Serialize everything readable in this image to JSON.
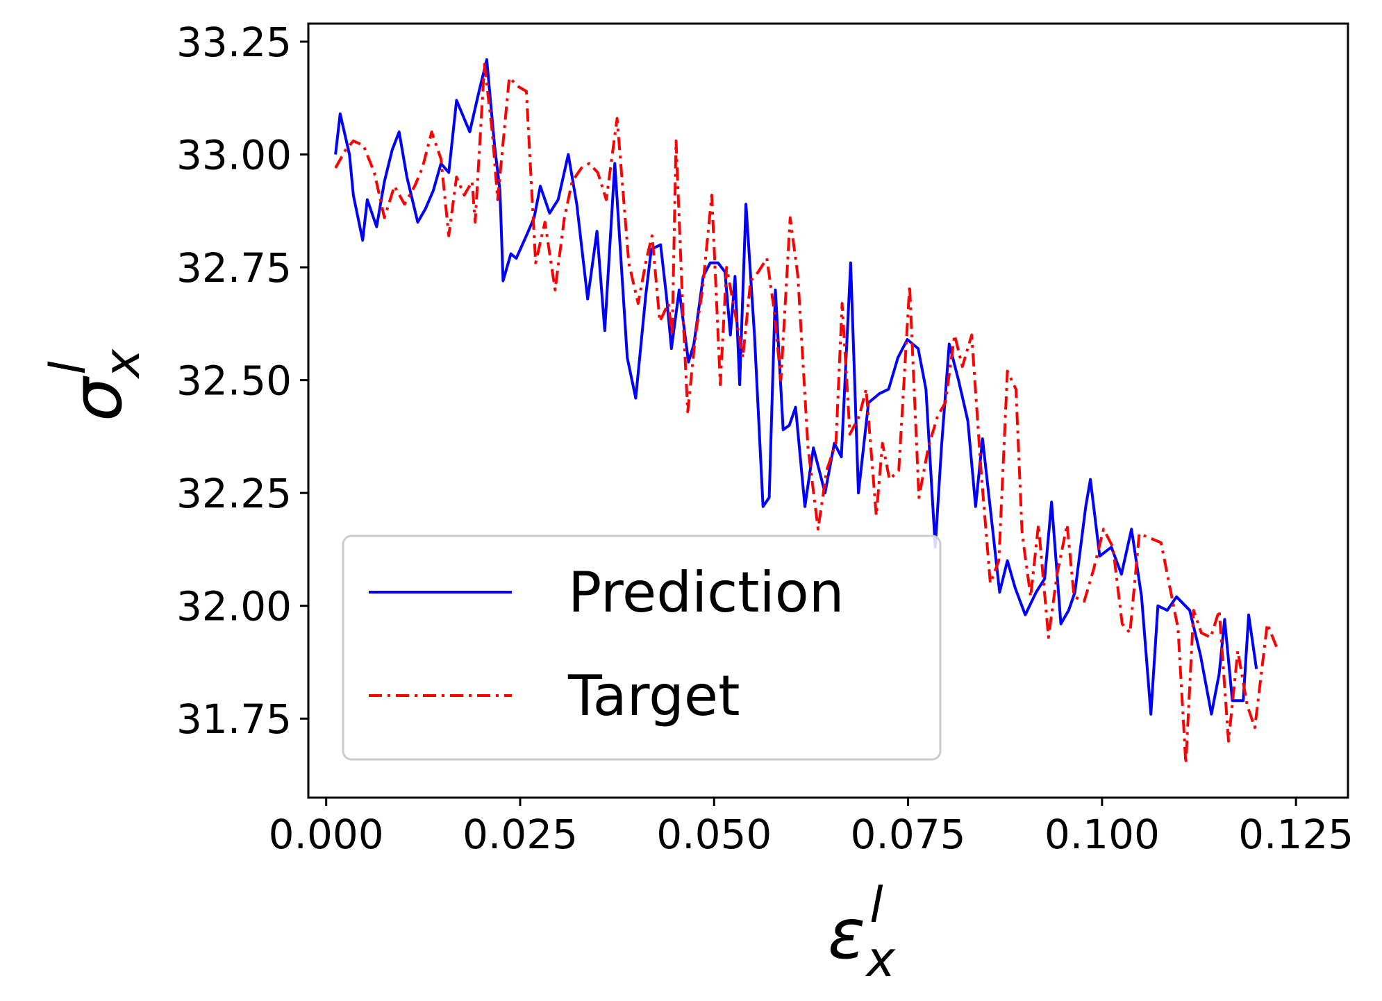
{
  "chart_data": {
    "type": "line",
    "title": "",
    "xlabel": {
      "base": "ε",
      "sup": "l",
      "sub": "x"
    },
    "ylabel": {
      "base": "σ",
      "sup": "l",
      "sub": "x"
    },
    "xlim": [
      -0.0023,
      0.1317
    ],
    "ylim": [
      31.575,
      33.29
    ],
    "xticks": [
      0.0,
      0.025,
      0.05,
      0.075,
      0.1,
      0.125
    ],
    "xtick_labels": [
      "0.000",
      "0.025",
      "0.050",
      "0.075",
      "0.100",
      "0.125"
    ],
    "yticks": [
      31.75,
      32.0,
      32.25,
      32.5,
      32.75,
      33.0,
      33.25
    ],
    "ytick_labels": [
      "31.75",
      "32.00",
      "32.25",
      "32.50",
      "32.75",
      "33.00",
      "33.25"
    ],
    "grid": false,
    "legend": {
      "position": "lower-left"
    },
    "series": [
      {
        "name": "Prediction",
        "color": "#0000ff",
        "style": "solid",
        "points": [
          [
            0.0012,
            33.0
          ],
          [
            0.0018,
            33.09
          ],
          [
            0.003,
            33.0
          ],
          [
            0.0035,
            32.91
          ],
          [
            0.0047,
            32.81
          ],
          [
            0.0053,
            32.9
          ],
          [
            0.0065,
            32.84
          ],
          [
            0.0075,
            32.94
          ],
          [
            0.0085,
            33.01
          ],
          [
            0.0094,
            33.05
          ],
          [
            0.0104,
            32.95
          ],
          [
            0.0118,
            32.85
          ],
          [
            0.0128,
            32.88
          ],
          [
            0.0138,
            32.92
          ],
          [
            0.0148,
            32.98
          ],
          [
            0.0158,
            32.96
          ],
          [
            0.0168,
            33.12
          ],
          [
            0.0185,
            33.05
          ],
          [
            0.0197,
            33.14
          ],
          [
            0.0207,
            33.21
          ],
          [
            0.0217,
            33.02
          ],
          [
            0.0224,
            32.92
          ],
          [
            0.0228,
            32.72
          ],
          [
            0.0238,
            32.78
          ],
          [
            0.0245,
            32.77
          ],
          [
            0.0258,
            32.82
          ],
          [
            0.0268,
            32.86
          ],
          [
            0.0276,
            32.93
          ],
          [
            0.0288,
            32.87
          ],
          [
            0.0299,
            32.9
          ],
          [
            0.0312,
            33.0
          ],
          [
            0.0323,
            32.89
          ],
          [
            0.0337,
            32.68
          ],
          [
            0.0349,
            32.83
          ],
          [
            0.0359,
            32.61
          ],
          [
            0.0372,
            32.98
          ],
          [
            0.0388,
            32.55
          ],
          [
            0.0399,
            32.46
          ],
          [
            0.0412,
            32.69
          ],
          [
            0.0419,
            32.79
          ],
          [
            0.0431,
            32.8
          ],
          [
            0.0439,
            32.68
          ],
          [
            0.0445,
            32.57
          ],
          [
            0.0455,
            32.7
          ],
          [
            0.0467,
            32.54
          ],
          [
            0.0474,
            32.58
          ],
          [
            0.0486,
            32.73
          ],
          [
            0.0495,
            32.76
          ],
          [
            0.0505,
            32.76
          ],
          [
            0.0514,
            32.74
          ],
          [
            0.0521,
            32.6
          ],
          [
            0.0527,
            32.73
          ],
          [
            0.0533,
            32.49
          ],
          [
            0.0541,
            32.89
          ],
          [
            0.0552,
            32.6
          ],
          [
            0.0563,
            32.22
          ],
          [
            0.0571,
            32.24
          ],
          [
            0.0579,
            32.7
          ],
          [
            0.0589,
            32.39
          ],
          [
            0.0597,
            32.4
          ],
          [
            0.0605,
            32.44
          ],
          [
            0.0617,
            32.22
          ],
          [
            0.0628,
            32.35
          ],
          [
            0.0643,
            32.25
          ],
          [
            0.0655,
            32.36
          ],
          [
            0.0664,
            32.33
          ],
          [
            0.0676,
            32.76
          ],
          [
            0.0686,
            32.25
          ],
          [
            0.0699,
            32.45
          ],
          [
            0.0713,
            32.47
          ],
          [
            0.0725,
            32.48
          ],
          [
            0.0737,
            32.55
          ],
          [
            0.0749,
            32.59
          ],
          [
            0.0763,
            32.57
          ],
          [
            0.0773,
            32.48
          ],
          [
            0.0785,
            32.13
          ],
          [
            0.0793,
            32.35
          ],
          [
            0.0803,
            32.58
          ],
          [
            0.0815,
            32.5
          ],
          [
            0.0827,
            32.41
          ],
          [
            0.0837,
            32.22
          ],
          [
            0.0846,
            32.37
          ],
          [
            0.0857,
            32.2
          ],
          [
            0.0868,
            32.03
          ],
          [
            0.0878,
            32.1
          ],
          [
            0.0888,
            32.04
          ],
          [
            0.0901,
            31.98
          ],
          [
            0.0915,
            32.03
          ],
          [
            0.0926,
            32.06
          ],
          [
            0.0935,
            32.23
          ],
          [
            0.0947,
            31.96
          ],
          [
            0.0957,
            31.99
          ],
          [
            0.0965,
            32.03
          ],
          [
            0.0979,
            32.22
          ],
          [
            0.0985,
            32.28
          ],
          [
            0.0997,
            32.11
          ],
          [
            0.1012,
            32.13
          ],
          [
            0.1025,
            32.07
          ],
          [
            0.1038,
            32.17
          ],
          [
            0.1051,
            32.02
          ],
          [
            0.1063,
            31.76
          ],
          [
            0.1072,
            32.0
          ],
          [
            0.1084,
            31.99
          ],
          [
            0.1096,
            32.02
          ],
          [
            0.1113,
            31.99
          ],
          [
            0.1127,
            31.89
          ],
          [
            0.1141,
            31.76
          ],
          [
            0.1151,
            31.85
          ],
          [
            0.1158,
            31.97
          ],
          [
            0.1168,
            31.79
          ],
          [
            0.1182,
            31.79
          ],
          [
            0.1189,
            31.98
          ],
          [
            0.1199,
            31.86
          ]
        ]
      },
      {
        "name": "Target",
        "color": "#ff0000",
        "style": "dashdot",
        "points": [
          [
            0.0012,
            32.97
          ],
          [
            0.0025,
            33.01
          ],
          [
            0.0035,
            33.03
          ],
          [
            0.0048,
            33.02
          ],
          [
            0.0062,
            32.96
          ],
          [
            0.0075,
            32.86
          ],
          [
            0.0088,
            32.93
          ],
          [
            0.0101,
            32.89
          ],
          [
            0.0114,
            32.93
          ],
          [
            0.0124,
            32.97
          ],
          [
            0.0136,
            33.05
          ],
          [
            0.0148,
            32.99
          ],
          [
            0.0158,
            32.82
          ],
          [
            0.0168,
            32.95
          ],
          [
            0.0178,
            32.91
          ],
          [
            0.0188,
            32.94
          ],
          [
            0.0192,
            32.85
          ],
          [
            0.0204,
            33.2
          ],
          [
            0.0214,
            33.05
          ],
          [
            0.0221,
            32.9
          ],
          [
            0.0236,
            33.17
          ],
          [
            0.0248,
            33.15
          ],
          [
            0.0258,
            33.14
          ],
          [
            0.027,
            32.76
          ],
          [
            0.0282,
            32.85
          ],
          [
            0.0295,
            32.7
          ],
          [
            0.0307,
            32.86
          ],
          [
            0.0317,
            32.94
          ],
          [
            0.0329,
            32.97
          ],
          [
            0.0339,
            32.98
          ],
          [
            0.035,
            32.96
          ],
          [
            0.0361,
            32.9
          ],
          [
            0.0375,
            33.08
          ],
          [
            0.039,
            32.76
          ],
          [
            0.0402,
            32.67
          ],
          [
            0.0413,
            32.77
          ],
          [
            0.042,
            32.82
          ],
          [
            0.043,
            32.63
          ],
          [
            0.0441,
            32.67
          ],
          [
            0.0446,
            32.6
          ],
          [
            0.0451,
            33.03
          ],
          [
            0.046,
            32.64
          ],
          [
            0.0466,
            32.43
          ],
          [
            0.0476,
            32.6
          ],
          [
            0.0485,
            32.7
          ],
          [
            0.0497,
            32.91
          ],
          [
            0.0508,
            32.49
          ],
          [
            0.0516,
            32.75
          ],
          [
            0.0527,
            32.65
          ],
          [
            0.0537,
            32.55
          ],
          [
            0.0547,
            32.72
          ],
          [
            0.0557,
            32.74
          ],
          [
            0.0568,
            32.77
          ],
          [
            0.0577,
            32.66
          ],
          [
            0.0586,
            32.5
          ],
          [
            0.0598,
            32.86
          ],
          [
            0.0608,
            32.73
          ],
          [
            0.0621,
            32.35
          ],
          [
            0.0634,
            32.17
          ],
          [
            0.0645,
            32.3
          ],
          [
            0.0657,
            32.36
          ],
          [
            0.0665,
            32.67
          ],
          [
            0.0675,
            32.38
          ],
          [
            0.0687,
            32.42
          ],
          [
            0.0696,
            32.48
          ],
          [
            0.0709,
            32.2
          ],
          [
            0.0717,
            32.36
          ],
          [
            0.0726,
            32.28
          ],
          [
            0.0738,
            32.3
          ],
          [
            0.0752,
            32.71
          ],
          [
            0.0764,
            32.24
          ],
          [
            0.0776,
            32.35
          ],
          [
            0.0788,
            32.42
          ],
          [
            0.0798,
            32.45
          ],
          [
            0.081,
            32.6
          ],
          [
            0.082,
            32.53
          ],
          [
            0.0832,
            32.6
          ],
          [
            0.0844,
            32.3
          ],
          [
            0.0856,
            32.05
          ],
          [
            0.0867,
            32.1
          ],
          [
            0.0878,
            32.52
          ],
          [
            0.0889,
            32.48
          ],
          [
            0.0897,
            32.16
          ],
          [
            0.0908,
            32.02
          ],
          [
            0.0918,
            32.18
          ],
          [
            0.0931,
            31.93
          ],
          [
            0.0942,
            32.07
          ],
          [
            0.0955,
            32.18
          ],
          [
            0.0964,
            32.02
          ],
          [
            0.0977,
            32.01
          ],
          [
            0.0989,
            32.08
          ],
          [
            0.1002,
            32.17
          ],
          [
            0.1014,
            32.13
          ],
          [
            0.1026,
            31.96
          ],
          [
            0.1036,
            31.94
          ],
          [
            0.1048,
            32.16
          ],
          [
            0.1062,
            32.15
          ],
          [
            0.1076,
            32.14
          ],
          [
            0.1098,
            31.95
          ],
          [
            0.1108,
            31.65
          ],
          [
            0.1118,
            31.99
          ],
          [
            0.1128,
            31.94
          ],
          [
            0.114,
            31.93
          ],
          [
            0.1151,
            31.99
          ],
          [
            0.1163,
            31.7
          ],
          [
            0.1175,
            31.9
          ],
          [
            0.1187,
            31.78
          ],
          [
            0.1197,
            31.73
          ],
          [
            0.1213,
            31.96
          ],
          [
            0.1227,
            31.9
          ]
        ]
      }
    ]
  }
}
